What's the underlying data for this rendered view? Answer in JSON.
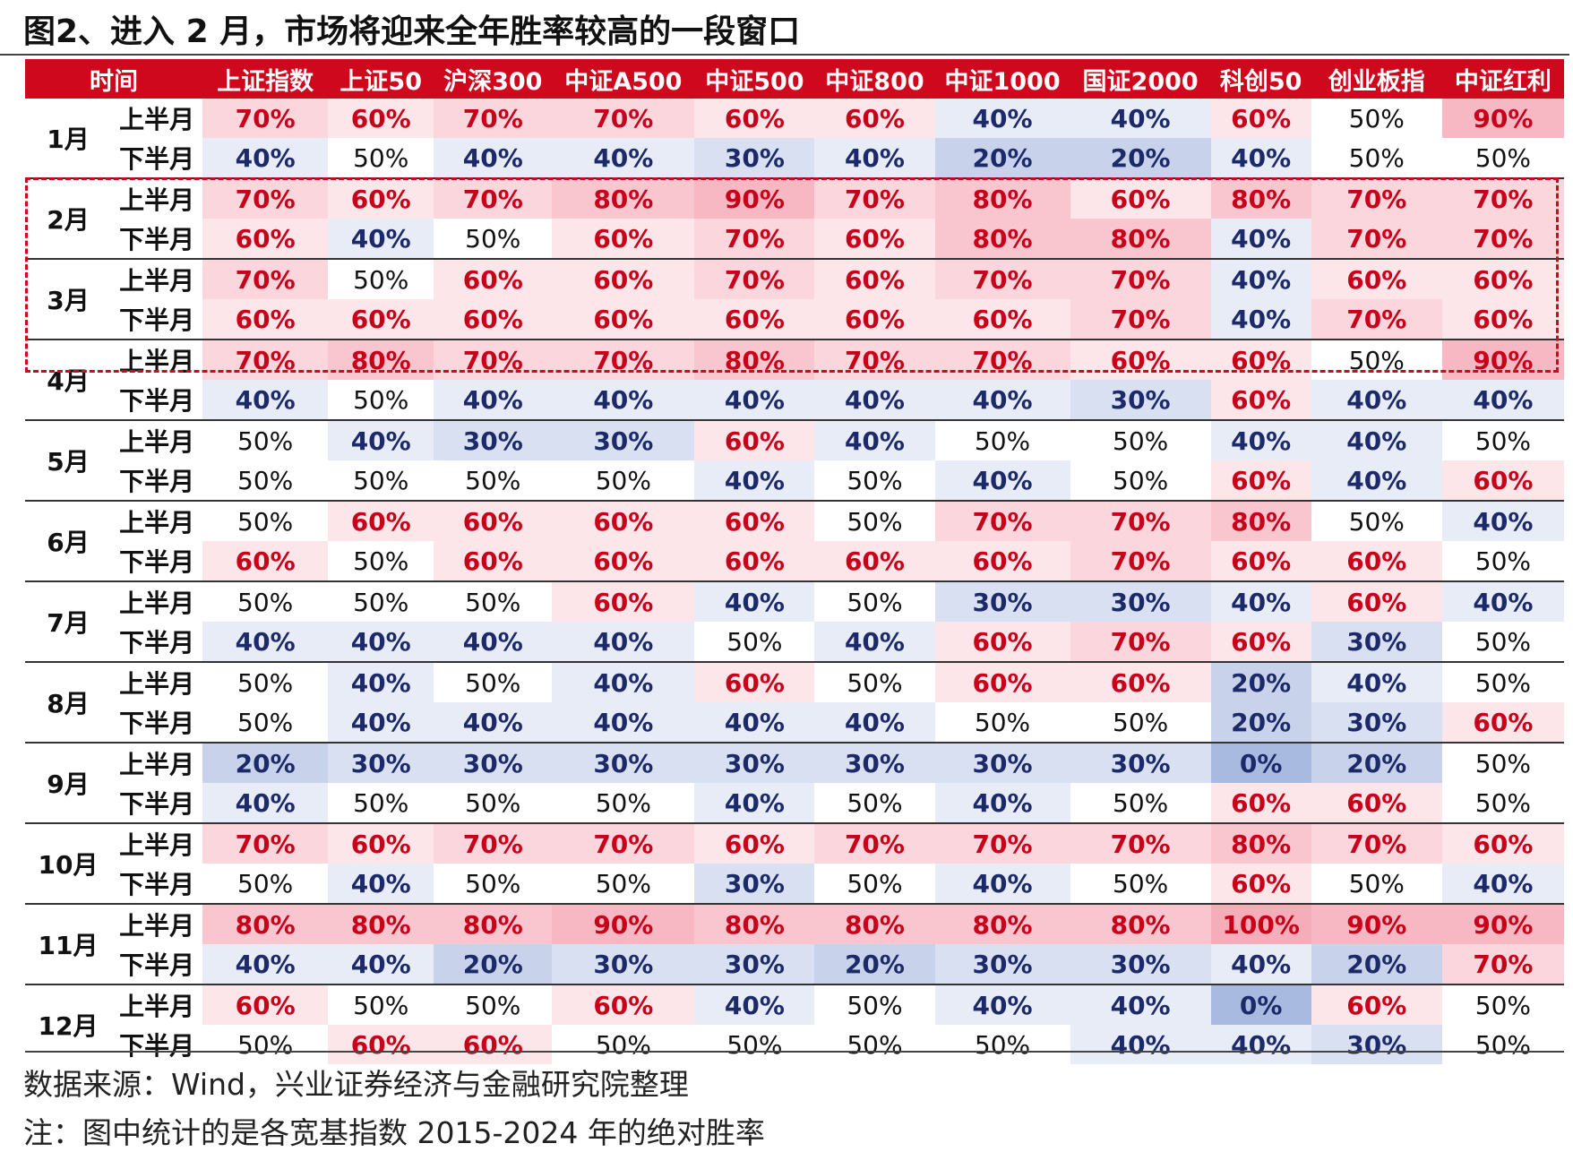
{
  "header": {
    "title": "图2、进入 2 月，市场将迎来全年胜率较高的一段窗口"
  },
  "table": {
    "columns": [
      "时间",
      "上证指数",
      "上证50",
      "沪深300",
      "中证A500",
      "中证500",
      "中证800",
      "中证1000",
      "国证2000",
      "科创50",
      "创业板指",
      "中证红利"
    ],
    "months": [
      {
        "label": "1月",
        "halves": [
          {
            "label": "上半月",
            "values": [
              "70%",
              "60%",
              "70%",
              "70%",
              "60%",
              "60%",
              "40%",
              "40%",
              "60%",
              "50%",
              "90%"
            ]
          },
          {
            "label": "下半月",
            "values": [
              "40%",
              "50%",
              "40%",
              "40%",
              "30%",
              "40%",
              "20%",
              "20%",
              "40%",
              "50%",
              "50%"
            ]
          }
        ]
      },
      {
        "label": "2月",
        "halves": [
          {
            "label": "上半月",
            "values": [
              "70%",
              "60%",
              "70%",
              "80%",
              "90%",
              "70%",
              "80%",
              "60%",
              "80%",
              "70%",
              "70%"
            ]
          },
          {
            "label": "下半月",
            "values": [
              "60%",
              "40%",
              "50%",
              "60%",
              "70%",
              "60%",
              "80%",
              "80%",
              "40%",
              "70%",
              "70%"
            ]
          }
        ]
      },
      {
        "label": "3月",
        "halves": [
          {
            "label": "上半月",
            "values": [
              "70%",
              "50%",
              "60%",
              "60%",
              "70%",
              "60%",
              "70%",
              "70%",
              "40%",
              "60%",
              "60%"
            ]
          },
          {
            "label": "下半月",
            "values": [
              "60%",
              "60%",
              "60%",
              "60%",
              "60%",
              "60%",
              "60%",
              "70%",
              "40%",
              "70%",
              "60%"
            ]
          }
        ]
      },
      {
        "label": "4月",
        "halves": [
          {
            "label": "上半月",
            "values": [
              "70%",
              "80%",
              "70%",
              "70%",
              "80%",
              "70%",
              "70%",
              "60%",
              "60%",
              "50%",
              "90%"
            ]
          },
          {
            "label": "下半月",
            "values": [
              "40%",
              "50%",
              "40%",
              "40%",
              "40%",
              "40%",
              "40%",
              "30%",
              "60%",
              "40%",
              "40%"
            ]
          }
        ]
      },
      {
        "label": "5月",
        "halves": [
          {
            "label": "上半月",
            "values": [
              "50%",
              "40%",
              "30%",
              "30%",
              "60%",
              "40%",
              "50%",
              "50%",
              "40%",
              "40%",
              "50%"
            ]
          },
          {
            "label": "下半月",
            "values": [
              "50%",
              "50%",
              "50%",
              "50%",
              "40%",
              "50%",
              "40%",
              "50%",
              "60%",
              "40%",
              "60%"
            ]
          }
        ]
      },
      {
        "label": "6月",
        "halves": [
          {
            "label": "上半月",
            "values": [
              "50%",
              "60%",
              "60%",
              "60%",
              "60%",
              "50%",
              "70%",
              "70%",
              "80%",
              "50%",
              "40%"
            ]
          },
          {
            "label": "下半月",
            "values": [
              "60%",
              "50%",
              "60%",
              "60%",
              "60%",
              "60%",
              "60%",
              "70%",
              "60%",
              "60%",
              "50%"
            ]
          }
        ]
      },
      {
        "label": "7月",
        "halves": [
          {
            "label": "上半月",
            "values": [
              "50%",
              "50%",
              "50%",
              "60%",
              "40%",
              "50%",
              "30%",
              "30%",
              "40%",
              "60%",
              "40%"
            ]
          },
          {
            "label": "下半月",
            "values": [
              "40%",
              "40%",
              "40%",
              "40%",
              "50%",
              "40%",
              "60%",
              "70%",
              "60%",
              "30%",
              "50%"
            ]
          }
        ]
      },
      {
        "label": "8月",
        "halves": [
          {
            "label": "上半月",
            "values": [
              "50%",
              "40%",
              "50%",
              "40%",
              "60%",
              "50%",
              "60%",
              "60%",
              "20%",
              "40%",
              "50%"
            ]
          },
          {
            "label": "下半月",
            "values": [
              "50%",
              "40%",
              "40%",
              "40%",
              "40%",
              "40%",
              "50%",
              "50%",
              "20%",
              "30%",
              "60%"
            ]
          }
        ]
      },
      {
        "label": "9月",
        "halves": [
          {
            "label": "上半月",
            "values": [
              "20%",
              "30%",
              "30%",
              "30%",
              "30%",
              "30%",
              "30%",
              "30%",
              "0%",
              "20%",
              "50%"
            ]
          },
          {
            "label": "下半月",
            "values": [
              "40%",
              "50%",
              "50%",
              "50%",
              "40%",
              "50%",
              "40%",
              "50%",
              "60%",
              "60%",
              "50%"
            ]
          }
        ]
      },
      {
        "label": "10月",
        "halves": [
          {
            "label": "上半月",
            "values": [
              "70%",
              "60%",
              "70%",
              "70%",
              "60%",
              "70%",
              "70%",
              "70%",
              "80%",
              "70%",
              "60%"
            ]
          },
          {
            "label": "下半月",
            "values": [
              "50%",
              "40%",
              "50%",
              "50%",
              "30%",
              "50%",
              "40%",
              "50%",
              "60%",
              "50%",
              "40%"
            ]
          }
        ]
      },
      {
        "label": "11月",
        "halves": [
          {
            "label": "上半月",
            "values": [
              "80%",
              "80%",
              "80%",
              "90%",
              "80%",
              "80%",
              "80%",
              "80%",
              "100%",
              "90%",
              "90%"
            ]
          },
          {
            "label": "下半月",
            "values": [
              "40%",
              "40%",
              "20%",
              "30%",
              "30%",
              "20%",
              "30%",
              "30%",
              "40%",
              "20%",
              "70%"
            ]
          }
        ]
      },
      {
        "label": "12月",
        "halves": [
          {
            "label": "上半月",
            "values": [
              "60%",
              "50%",
              "50%",
              "60%",
              "40%",
              "50%",
              "40%",
              "40%",
              "0%",
              "60%",
              "50%"
            ]
          },
          {
            "label": "下半月",
            "values": [
              "50%",
              "60%",
              "60%",
              "50%",
              "50%",
              "50%",
              "50%",
              "40%",
              "40%",
              "30%",
              "50%"
            ]
          }
        ]
      }
    ]
  },
  "footer": {
    "notes": [
      "数据来源：Wind，兴业证券经济与金融研究院整理",
      "注：图中统计的是各宽基指数 2015-2024 年的绝对胜率"
    ]
  }
}
